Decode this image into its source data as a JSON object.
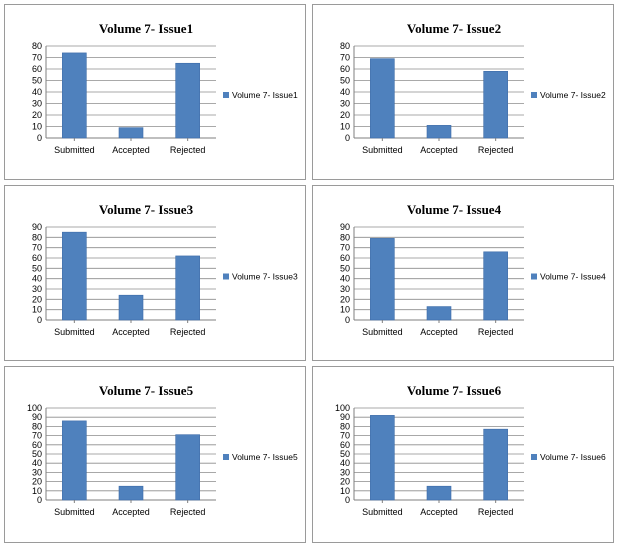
{
  "chart_data": [
    {
      "type": "bar",
      "title": "Volume 7- Issue1",
      "categories": [
        "Submitted",
        "Accepted",
        "Rejected"
      ],
      "series": [
        {
          "name": "Volume 7- Issue1",
          "values": [
            74,
            9,
            65
          ]
        }
      ],
      "ylim": [
        0,
        80
      ],
      "yticks": [
        0,
        10,
        20,
        30,
        40,
        50,
        60,
        70,
        80
      ],
      "grid": true,
      "legend": "right",
      "bar_color": "#4f81bd"
    },
    {
      "type": "bar",
      "title": "Volume 7- Issue2",
      "categories": [
        "Submitted",
        "Accepted",
        "Rejected"
      ],
      "series": [
        {
          "name": "Volume 7- Issue2",
          "values": [
            69,
            11,
            58
          ]
        }
      ],
      "ylim": [
        0,
        80
      ],
      "yticks": [
        0,
        10,
        20,
        30,
        40,
        50,
        60,
        70,
        80
      ],
      "grid": true,
      "legend": "right",
      "bar_color": "#4f81bd"
    },
    {
      "type": "bar",
      "title": "Volume 7- Issue3",
      "categories": [
        "Submitted",
        "Accepted",
        "Rejected"
      ],
      "series": [
        {
          "name": "Volume 7- Issue3",
          "values": [
            85,
            24,
            62
          ]
        }
      ],
      "ylim": [
        0,
        90
      ],
      "yticks": [
        0,
        10,
        20,
        30,
        40,
        50,
        60,
        70,
        80,
        90
      ],
      "grid": true,
      "legend": "right",
      "bar_color": "#4f81bd"
    },
    {
      "type": "bar",
      "title": "Volume 7- Issue4",
      "categories": [
        "Submitted",
        "Accepted",
        "Rejected"
      ],
      "series": [
        {
          "name": "Volume 7- Issue4",
          "values": [
            79,
            13,
            66
          ]
        }
      ],
      "ylim": [
        0,
        90
      ],
      "yticks": [
        0,
        10,
        20,
        30,
        40,
        50,
        60,
        70,
        80,
        90
      ],
      "grid": true,
      "legend": "right",
      "bar_color": "#4f81bd"
    },
    {
      "type": "bar",
      "title": "Volume 7- Issue5",
      "categories": [
        "Submitted",
        "Accepted",
        "Rejected"
      ],
      "series": [
        {
          "name": "Volume 7- Issue5",
          "values": [
            86,
            15,
            71
          ]
        }
      ],
      "ylim": [
        0,
        100
      ],
      "yticks": [
        0,
        10,
        20,
        30,
        40,
        50,
        60,
        70,
        80,
        90,
        100
      ],
      "grid": true,
      "legend": "right",
      "bar_color": "#4f81bd"
    },
    {
      "type": "bar",
      "title": "Volume 7- Issue6",
      "categories": [
        "Submitted",
        "Accepted",
        "Rejected"
      ],
      "series": [
        {
          "name": "Volume 7- Issue6",
          "values": [
            92,
            15,
            77
          ]
        }
      ],
      "ylim": [
        0,
        100
      ],
      "yticks": [
        0,
        10,
        20,
        30,
        40,
        50,
        60,
        70,
        80,
        90,
        100
      ],
      "grid": true,
      "legend": "right",
      "bar_color": "#4f81bd"
    }
  ]
}
